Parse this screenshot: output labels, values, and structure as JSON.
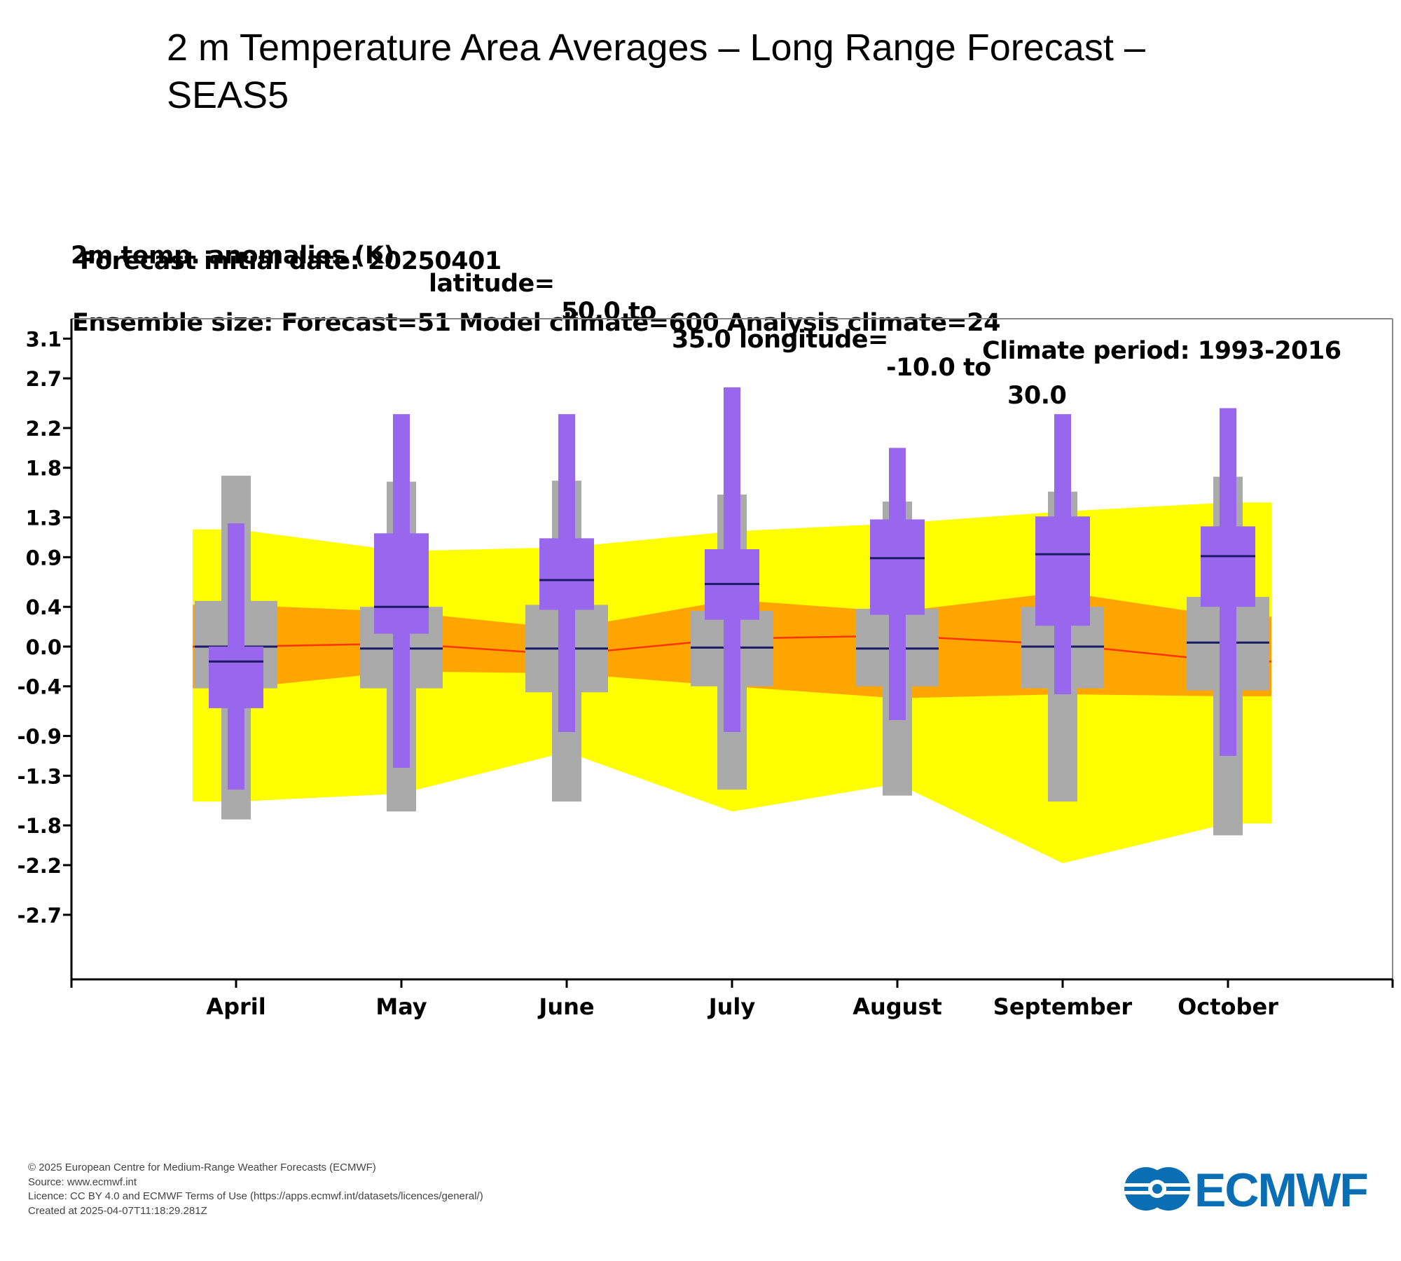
{
  "page_title": "2  m Temperature Area Averages – Long Range Forecast – SEAS5",
  "header": {
    "line1_parts": [
      "2m temp. anomalies (K)",
      "latitude=",
      "50.0 to",
      "35.0 longitude=",
      "-10.0 to",
      "30.0"
    ],
    "line2": "Forecast initial date: 20250401",
    "line3_parts": [
      "Ensemble size: Forecast=51 Model climate=600 Analysis climate=24",
      "Climate period: 1993-2016"
    ]
  },
  "colors": {
    "climate_outer": "#ffff00",
    "climate_inner": "#ffa500",
    "climate_median_line": "#ff3300",
    "model_climate_box": "#aaaaaa",
    "forecast_box": "#9966ee",
    "median_marker": "#1a1a66"
  },
  "chart_data": {
    "type": "box",
    "categories": [
      "April",
      "May",
      "June",
      "July",
      "August",
      "September",
      "October"
    ],
    "y_ticks": [
      "3.1",
      "2.7",
      "2.2",
      "1.8",
      "1.3",
      "0.9",
      "0.4",
      "0.0",
      "-0.4",
      "-0.9",
      "-1.3",
      "-1.8",
      "-2.2",
      "-2.7"
    ],
    "ylim": [
      -3.35,
      3.3
    ],
    "analysis_climate": {
      "outer_upper": [
        1.18,
        0.96,
        1.0,
        1.16,
        1.24,
        1.36,
        1.45
      ],
      "outer_lower": [
        -1.56,
        -1.48,
        -1.06,
        -1.66,
        -1.38,
        -2.18,
        -1.78
      ],
      "inner_upper": [
        0.42,
        0.35,
        0.18,
        0.47,
        0.35,
        0.55,
        0.3
      ],
      "inner_lower": [
        -0.42,
        -0.25,
        -0.27,
        -0.4,
        -0.52,
        -0.48,
        -0.5
      ],
      "median": [
        0.0,
        0.03,
        -0.08,
        0.08,
        0.11,
        0.02,
        -0.15
      ]
    },
    "model_climate": {
      "min": [
        -1.74,
        -1.66,
        -1.56,
        -1.44,
        -1.5,
        -1.56,
        -1.9
      ],
      "q_low": [
        -0.42,
        -0.42,
        -0.46,
        -0.4,
        -0.4,
        -0.42,
        -0.44
      ],
      "median": [
        0.0,
        -0.02,
        -0.02,
        -0.01,
        -0.02,
        0.0,
        0.04
      ],
      "q_high": [
        0.46,
        0.4,
        0.42,
        0.36,
        0.38,
        0.4,
        0.5
      ],
      "max": [
        1.72,
        1.66,
        1.67,
        1.53,
        1.46,
        1.56,
        1.71
      ]
    },
    "forecast": {
      "min": [
        -1.44,
        -1.22,
        -0.86,
        -0.86,
        -0.74,
        -0.48,
        -1.1
      ],
      "q_low": [
        -0.62,
        0.13,
        0.37,
        0.27,
        0.32,
        0.21,
        0.4
      ],
      "median": [
        -0.15,
        0.4,
        0.67,
        0.63,
        0.89,
        0.93,
        0.91
      ],
      "q_high": [
        0.0,
        1.14,
        1.09,
        0.98,
        1.28,
        1.31,
        1.21
      ],
      "max": [
        1.24,
        2.34,
        2.34,
        2.61,
        2.0,
        2.34,
        2.4
      ]
    }
  },
  "footer": {
    "lines": [
      "© 2025 European Centre for Medium-Range Weather Forecasts (ECMWF)",
      "Source: www.ecmwf.int",
      "Licence: CC BY 4.0 and ECMWF Terms of Use (https://apps.ecmwf.int/datasets/licences/general/)",
      "Created at 2025-04-07T11:18:29.281Z"
    ]
  },
  "logo": {
    "text": "ECMWF",
    "color": "#0a6eb4"
  }
}
